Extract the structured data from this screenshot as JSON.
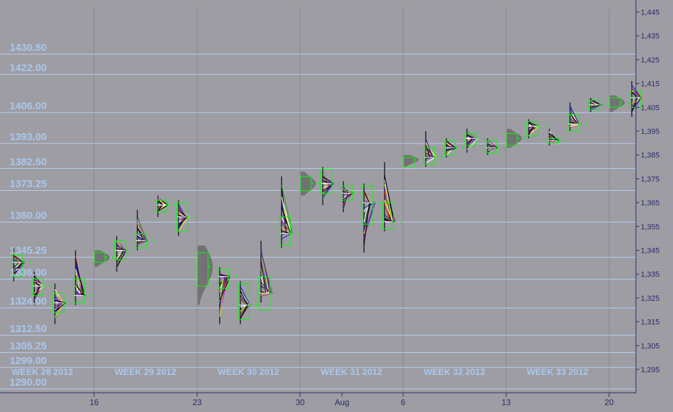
{
  "chart_data": {
    "type": "market-profile",
    "title": "",
    "xlabel": "",
    "ylabel": "",
    "ylim": [
      1285,
      1447
    ],
    "y_ticks": [
      1295,
      1305,
      1315,
      1325,
      1335,
      1345,
      1355,
      1365,
      1375,
      1385,
      1395,
      1405,
      1415,
      1425,
      1435,
      1445
    ],
    "y_tick_labels": [
      "1,295",
      "1,305",
      "1,315",
      "1,325",
      "1,335",
      "1,345",
      "1,355",
      "1,365",
      "1,375",
      "1,385",
      "1,395",
      "1,405",
      "1,415",
      "1,425",
      "1,435",
      "1,445"
    ],
    "price_levels": [
      1430.5,
      1422.0,
      1406.0,
      1393.0,
      1382.5,
      1373.25,
      1360.0,
      1345.25,
      1336.0,
      1324.0,
      1312.5,
      1305.25,
      1299.0,
      1290.0
    ],
    "price_level_labels": [
      "1430.50",
      "1422.00",
      "1406.00",
      "1393.00",
      "1382.50",
      "1373.25",
      "1360.00",
      "1345.25",
      "1336.00",
      "1324.00",
      "1312.50",
      "1305.25",
      "1299.00",
      "1290.00"
    ],
    "x_ticks": [
      "16",
      "23",
      "30",
      "Aug",
      "6",
      "13",
      "20"
    ],
    "weeks": [
      "WEEK 28 2012",
      "WEEK 29 2012",
      "WEEK 30 2012",
      "WEEK 31 2012",
      "WEEK 32 2012",
      "WEEK 33 2012"
    ],
    "sessions": [
      {
        "day": 0,
        "low": 1332,
        "high": 1346,
        "poc": 1340,
        "vah": 1343,
        "val": 1334
      },
      {
        "day": 1,
        "low": 1322,
        "high": 1336,
        "poc": 1330,
        "vah": 1333,
        "val": 1326
      },
      {
        "day": 2,
        "low": 1314,
        "high": 1331,
        "poc": 1323,
        "vah": 1327,
        "val": 1319
      },
      {
        "day": 3,
        "low": 1322,
        "high": 1345,
        "poc": 1326,
        "vah": 1333,
        "val": 1323
      },
      {
        "day": 4,
        "low": 1338,
        "high": 1345,
        "poc": 1342,
        "vah": 1344,
        "val": 1340,
        "composite": true
      },
      {
        "day": 5,
        "low": 1336,
        "high": 1351,
        "poc": 1345,
        "vah": 1349,
        "val": 1341
      },
      {
        "day": 6,
        "low": 1345,
        "high": 1362,
        "poc": 1349,
        "vah": 1352,
        "val": 1346
      },
      {
        "day": 7,
        "low": 1359,
        "high": 1368,
        "poc": 1364,
        "vah": 1366,
        "val": 1361
      },
      {
        "day": 8,
        "low": 1351,
        "high": 1366,
        "poc": 1359,
        "vah": 1365,
        "val": 1353
      },
      {
        "day": 9,
        "low": 1322,
        "high": 1347,
        "poc": 1338,
        "vah": 1344,
        "val": 1330,
        "composite": true
      },
      {
        "day": 10,
        "low": 1314,
        "high": 1338,
        "poc": 1334,
        "vah": 1337,
        "val": 1329
      },
      {
        "day": 11,
        "low": 1314,
        "high": 1332,
        "poc": 1322,
        "vah": 1331,
        "val": 1316
      },
      {
        "day": 12,
        "low": 1323,
        "high": 1349,
        "poc": 1327,
        "vah": 1334,
        "val": 1320
      },
      {
        "day": 13,
        "low": 1346,
        "high": 1376,
        "poc": 1352,
        "vah": 1359,
        "val": 1347
      },
      {
        "day": 14,
        "low": 1368,
        "high": 1378,
        "poc": 1373,
        "vah": 1376,
        "val": 1370,
        "composite": true
      },
      {
        "day": 15,
        "low": 1364,
        "high": 1380,
        "poc": 1373,
        "vah": 1379,
        "val": 1369
      },
      {
        "day": 16,
        "low": 1361,
        "high": 1374,
        "poc": 1369,
        "vah": 1372,
        "val": 1366
      },
      {
        "day": 17,
        "low": 1344,
        "high": 1373,
        "poc": 1365,
        "vah": 1372,
        "val": 1356
      },
      {
        "day": 18,
        "low": 1353,
        "high": 1382,
        "poc": 1357,
        "vah": 1365,
        "val": 1354
      },
      {
        "day": 19,
        "low": 1380,
        "high": 1385,
        "poc": 1383,
        "vah": 1384,
        "val": 1380,
        "composite": true
      },
      {
        "day": 20,
        "low": 1380,
        "high": 1395,
        "poc": 1384,
        "vah": 1388,
        "val": 1381
      },
      {
        "day": 21,
        "low": 1384,
        "high": 1392,
        "poc": 1388,
        "vah": 1391,
        "val": 1385
      },
      {
        "day": 22,
        "low": 1386,
        "high": 1396,
        "poc": 1392,
        "vah": 1394,
        "val": 1389
      },
      {
        "day": 23,
        "low": 1385,
        "high": 1392,
        "poc": 1388,
        "vah": 1391,
        "val": 1386
      },
      {
        "day": 24,
        "low": 1388,
        "high": 1396,
        "poc": 1392,
        "vah": 1394,
        "val": 1389,
        "composite": true
      },
      {
        "day": 25,
        "low": 1392,
        "high": 1400,
        "poc": 1397,
        "vah": 1399,
        "val": 1393
      },
      {
        "day": 26,
        "low": 1389,
        "high": 1396,
        "poc": 1391,
        "vah": 1392,
        "val": 1390
      },
      {
        "day": 27,
        "low": 1395,
        "high": 1407,
        "poc": 1398,
        "vah": 1402,
        "val": 1395
      },
      {
        "day": 28,
        "low": 1403,
        "high": 1409,
        "poc": 1406,
        "vah": 1408,
        "val": 1404
      },
      {
        "day": 29,
        "low": 1403,
        "high": 1410,
        "poc": 1407,
        "vah": 1409,
        "val": 1405,
        "composite": true
      },
      {
        "day": 30,
        "low": 1401,
        "high": 1416,
        "poc": 1409,
        "vah": 1412,
        "val": 1405
      }
    ]
  },
  "colors": {
    "plot_bg": "#9e9da3",
    "gridline": "#b8d0f4",
    "vertical_grid": "#85848c",
    "axis_bg": "#9e9da3",
    "value_area_box": "#00ff00",
    "histogram": "#6e6e6e",
    "axis_text": "#2a2a6a",
    "level_label": "#a9c8ee"
  }
}
